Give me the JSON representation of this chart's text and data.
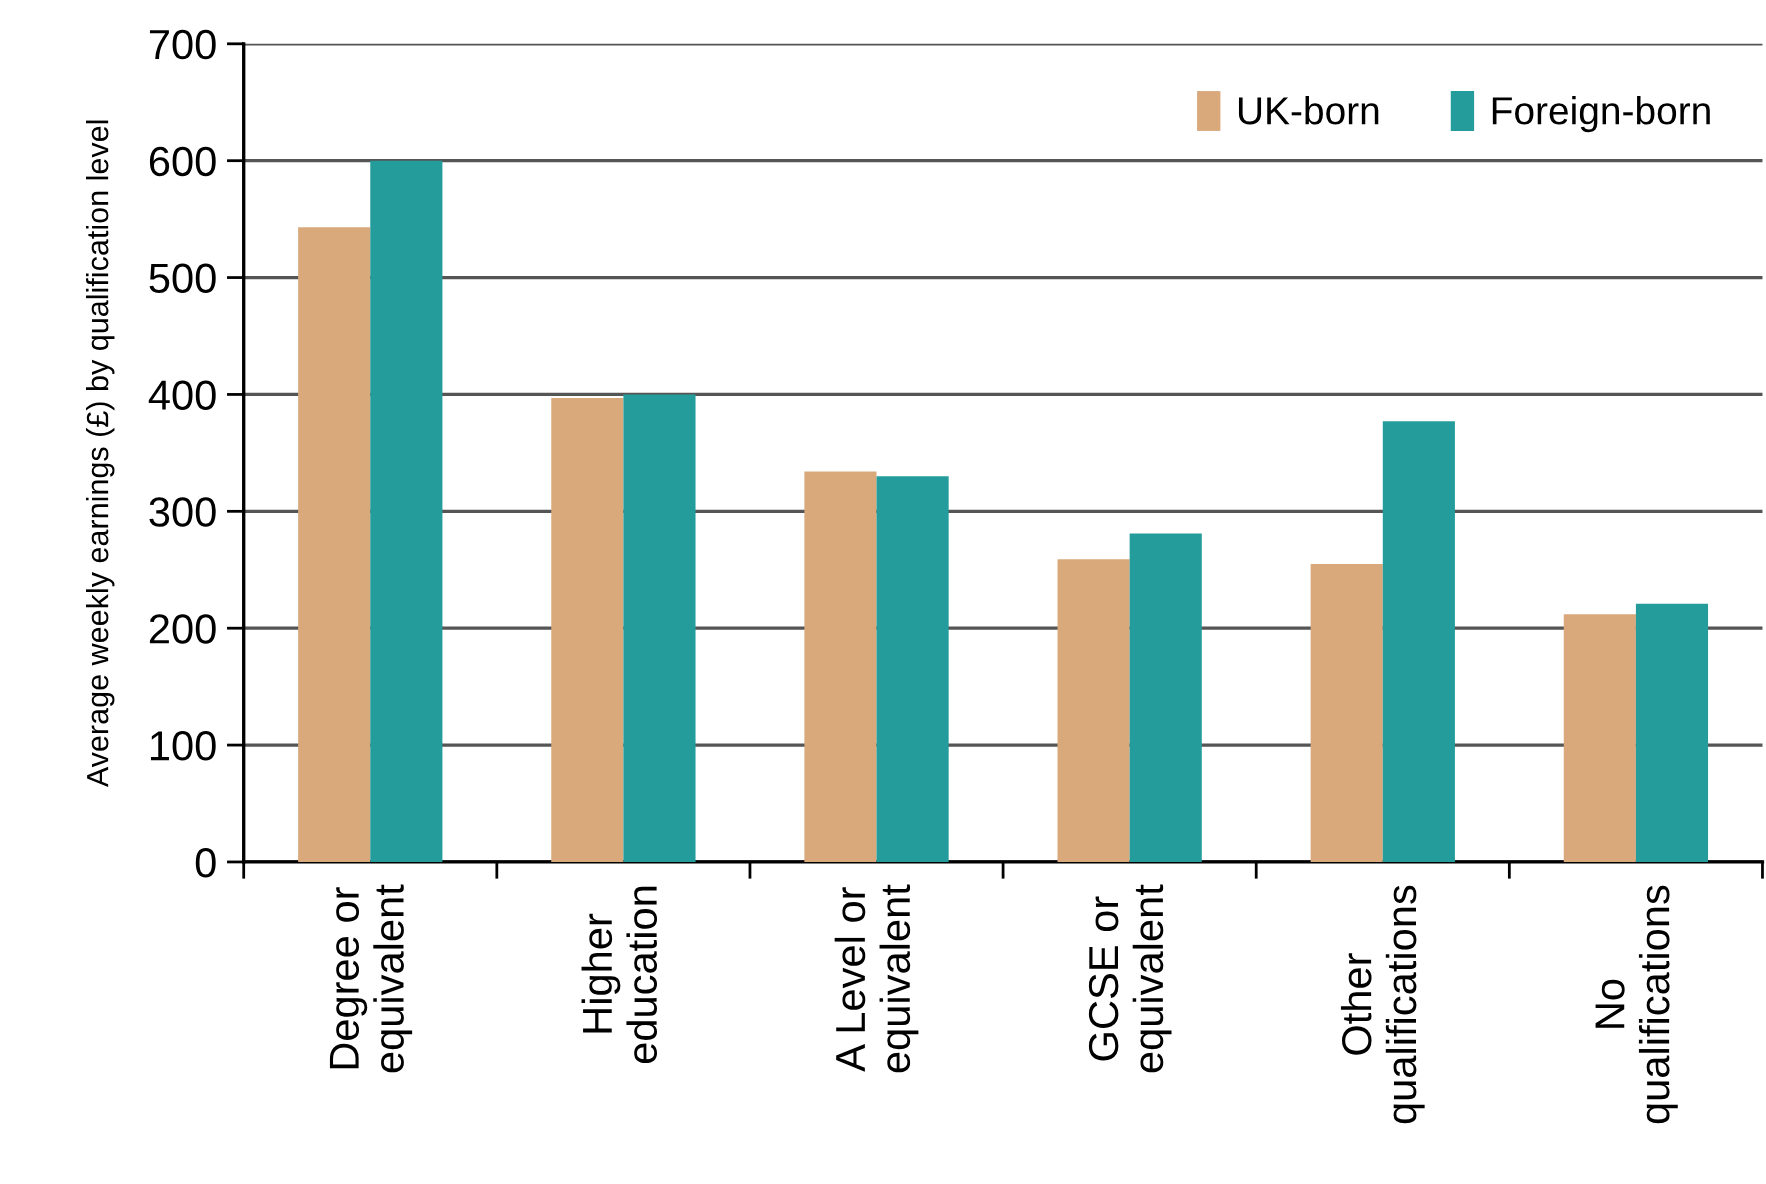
{
  "chart_data": {
    "type": "bar",
    "ylabel": "Average weekly earnings (£) by qualification level",
    "categories": [
      "Degree or\nequivalent",
      "Higher\neducation",
      "A Level or\nequivalent",
      "GCSE or\nequivalent",
      "Other\nqualifications",
      "No\nqualifications"
    ],
    "series": [
      {
        "name": "UK-born",
        "color": "#d9a97c",
        "values": [
          543,
          397,
          334,
          259,
          255,
          212
        ]
      },
      {
        "name": "Foreign-born",
        "color": "#259c9c",
        "values": [
          600,
          400,
          330,
          281,
          377,
          221
        ]
      }
    ],
    "ylim": [
      0,
      700
    ],
    "yticks": [
      0,
      100,
      200,
      300,
      400,
      500,
      600,
      700
    ],
    "grid": "y",
    "legend": "top right"
  }
}
